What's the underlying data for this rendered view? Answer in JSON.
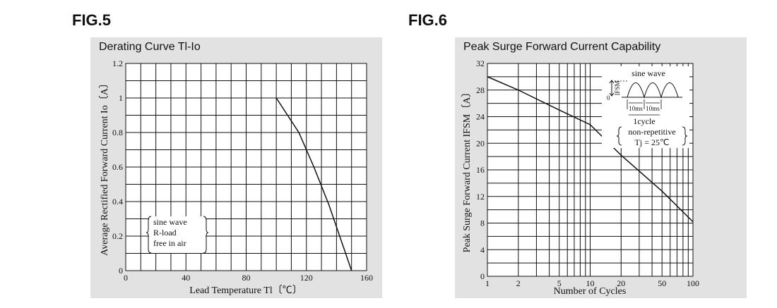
{
  "fig5": {
    "label": "FIG.5"
  },
  "fig6": {
    "label": "FIG.6"
  },
  "chart_data": [
    {
      "type": "line",
      "title": "Derating Curve Tl-Io",
      "xlabel": "Lead Temperature Tl〔℃〕",
      "ylabel": "Average Rectified Forward Current Io〔A〕",
      "xlim": [
        0,
        160
      ],
      "ylim": [
        0,
        1.2
      ],
      "xticks": [
        "0",
        "40",
        "80",
        "120",
        "160"
      ],
      "yticks": [
        "0",
        "0.2",
        "0.4",
        "0.6",
        "0.8",
        "1",
        "1.2"
      ],
      "grid": true,
      "series": [
        {
          "x": [
            100,
            115,
            125,
            135,
            150
          ],
          "y": [
            1.0,
            0.8,
            0.6,
            0.38,
            0
          ]
        }
      ],
      "annotation": [
        "sine wave",
        "R-load",
        "free in air"
      ]
    },
    {
      "type": "line",
      "title": "Peak Surge Forward Current Capability",
      "xlabel": "Number of Cycles",
      "ylabel": "Peak Surge Forward Current IFSM〔A〕",
      "xscale": "log",
      "xlim": [
        1,
        100
      ],
      "ylim": [
        0,
        32
      ],
      "xticks": [
        "1",
        "2",
        "5",
        "10",
        "20",
        "50",
        "100"
      ],
      "yticks": [
        "0",
        "4",
        "8",
        "12",
        "16",
        "20",
        "24",
        "28",
        "32"
      ],
      "grid": true,
      "series": [
        {
          "x": [
            1,
            2,
            5,
            10,
            20,
            50,
            100
          ],
          "y": [
            30,
            28,
            25,
            22.8,
            18.2,
            12.8,
            8.2
          ]
        }
      ],
      "inset": {
        "title": "sine wave",
        "ylabel": "IFSM",
        "zero_label": "0",
        "period_label": "10ms",
        "cycle_label": "1cycle",
        "note": [
          "non-repetitive",
          "Tj = 25℃"
        ]
      }
    }
  ]
}
